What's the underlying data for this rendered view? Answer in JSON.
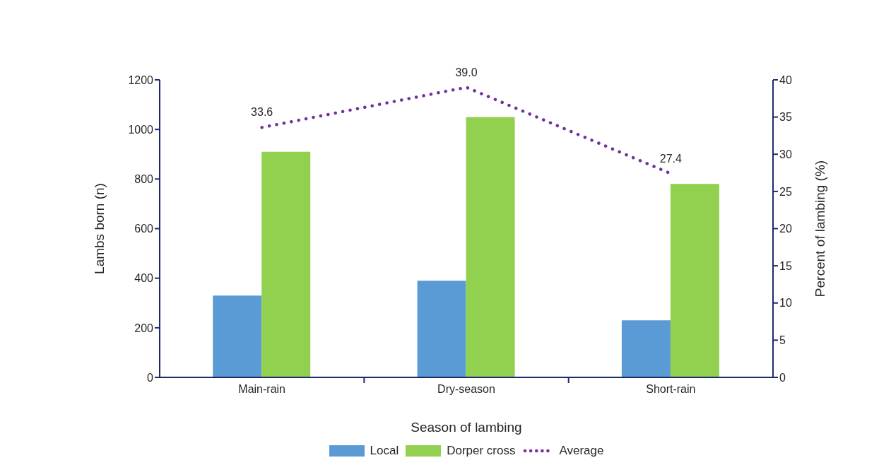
{
  "chart_data": {
    "type": "bar",
    "xlabel": "Season of lambing",
    "ylabel": "Lambs born (n)",
    "y2label": "Percent of lambing (%)",
    "categories": [
      "Main-rain",
      "Dry-season",
      "Short-rain"
    ],
    "series": [
      {
        "name": "Local",
        "color": "#5b9bd5",
        "values": [
          330,
          390,
          230
        ]
      },
      {
        "name": "Dorper cross",
        "color": "#92d050",
        "values": [
          910,
          1050,
          780
        ]
      },
      {
        "name": "Average",
        "type": "line",
        "axis": "y2",
        "color": "#7030a0",
        "values": [
          33.6,
          39.0,
          27.4
        ],
        "value_labels": [
          "33.6",
          "39.0",
          "27.4"
        ],
        "line_style": "dotted"
      }
    ],
    "ylim": [
      0,
      1200
    ],
    "yticks": [
      0,
      200,
      400,
      600,
      800,
      1000,
      1200
    ],
    "y2lim": [
      0,
      40
    ],
    "y2ticks": [
      0,
      5,
      10,
      15,
      20,
      25,
      30,
      35,
      40
    ],
    "legend": "bottom"
  }
}
